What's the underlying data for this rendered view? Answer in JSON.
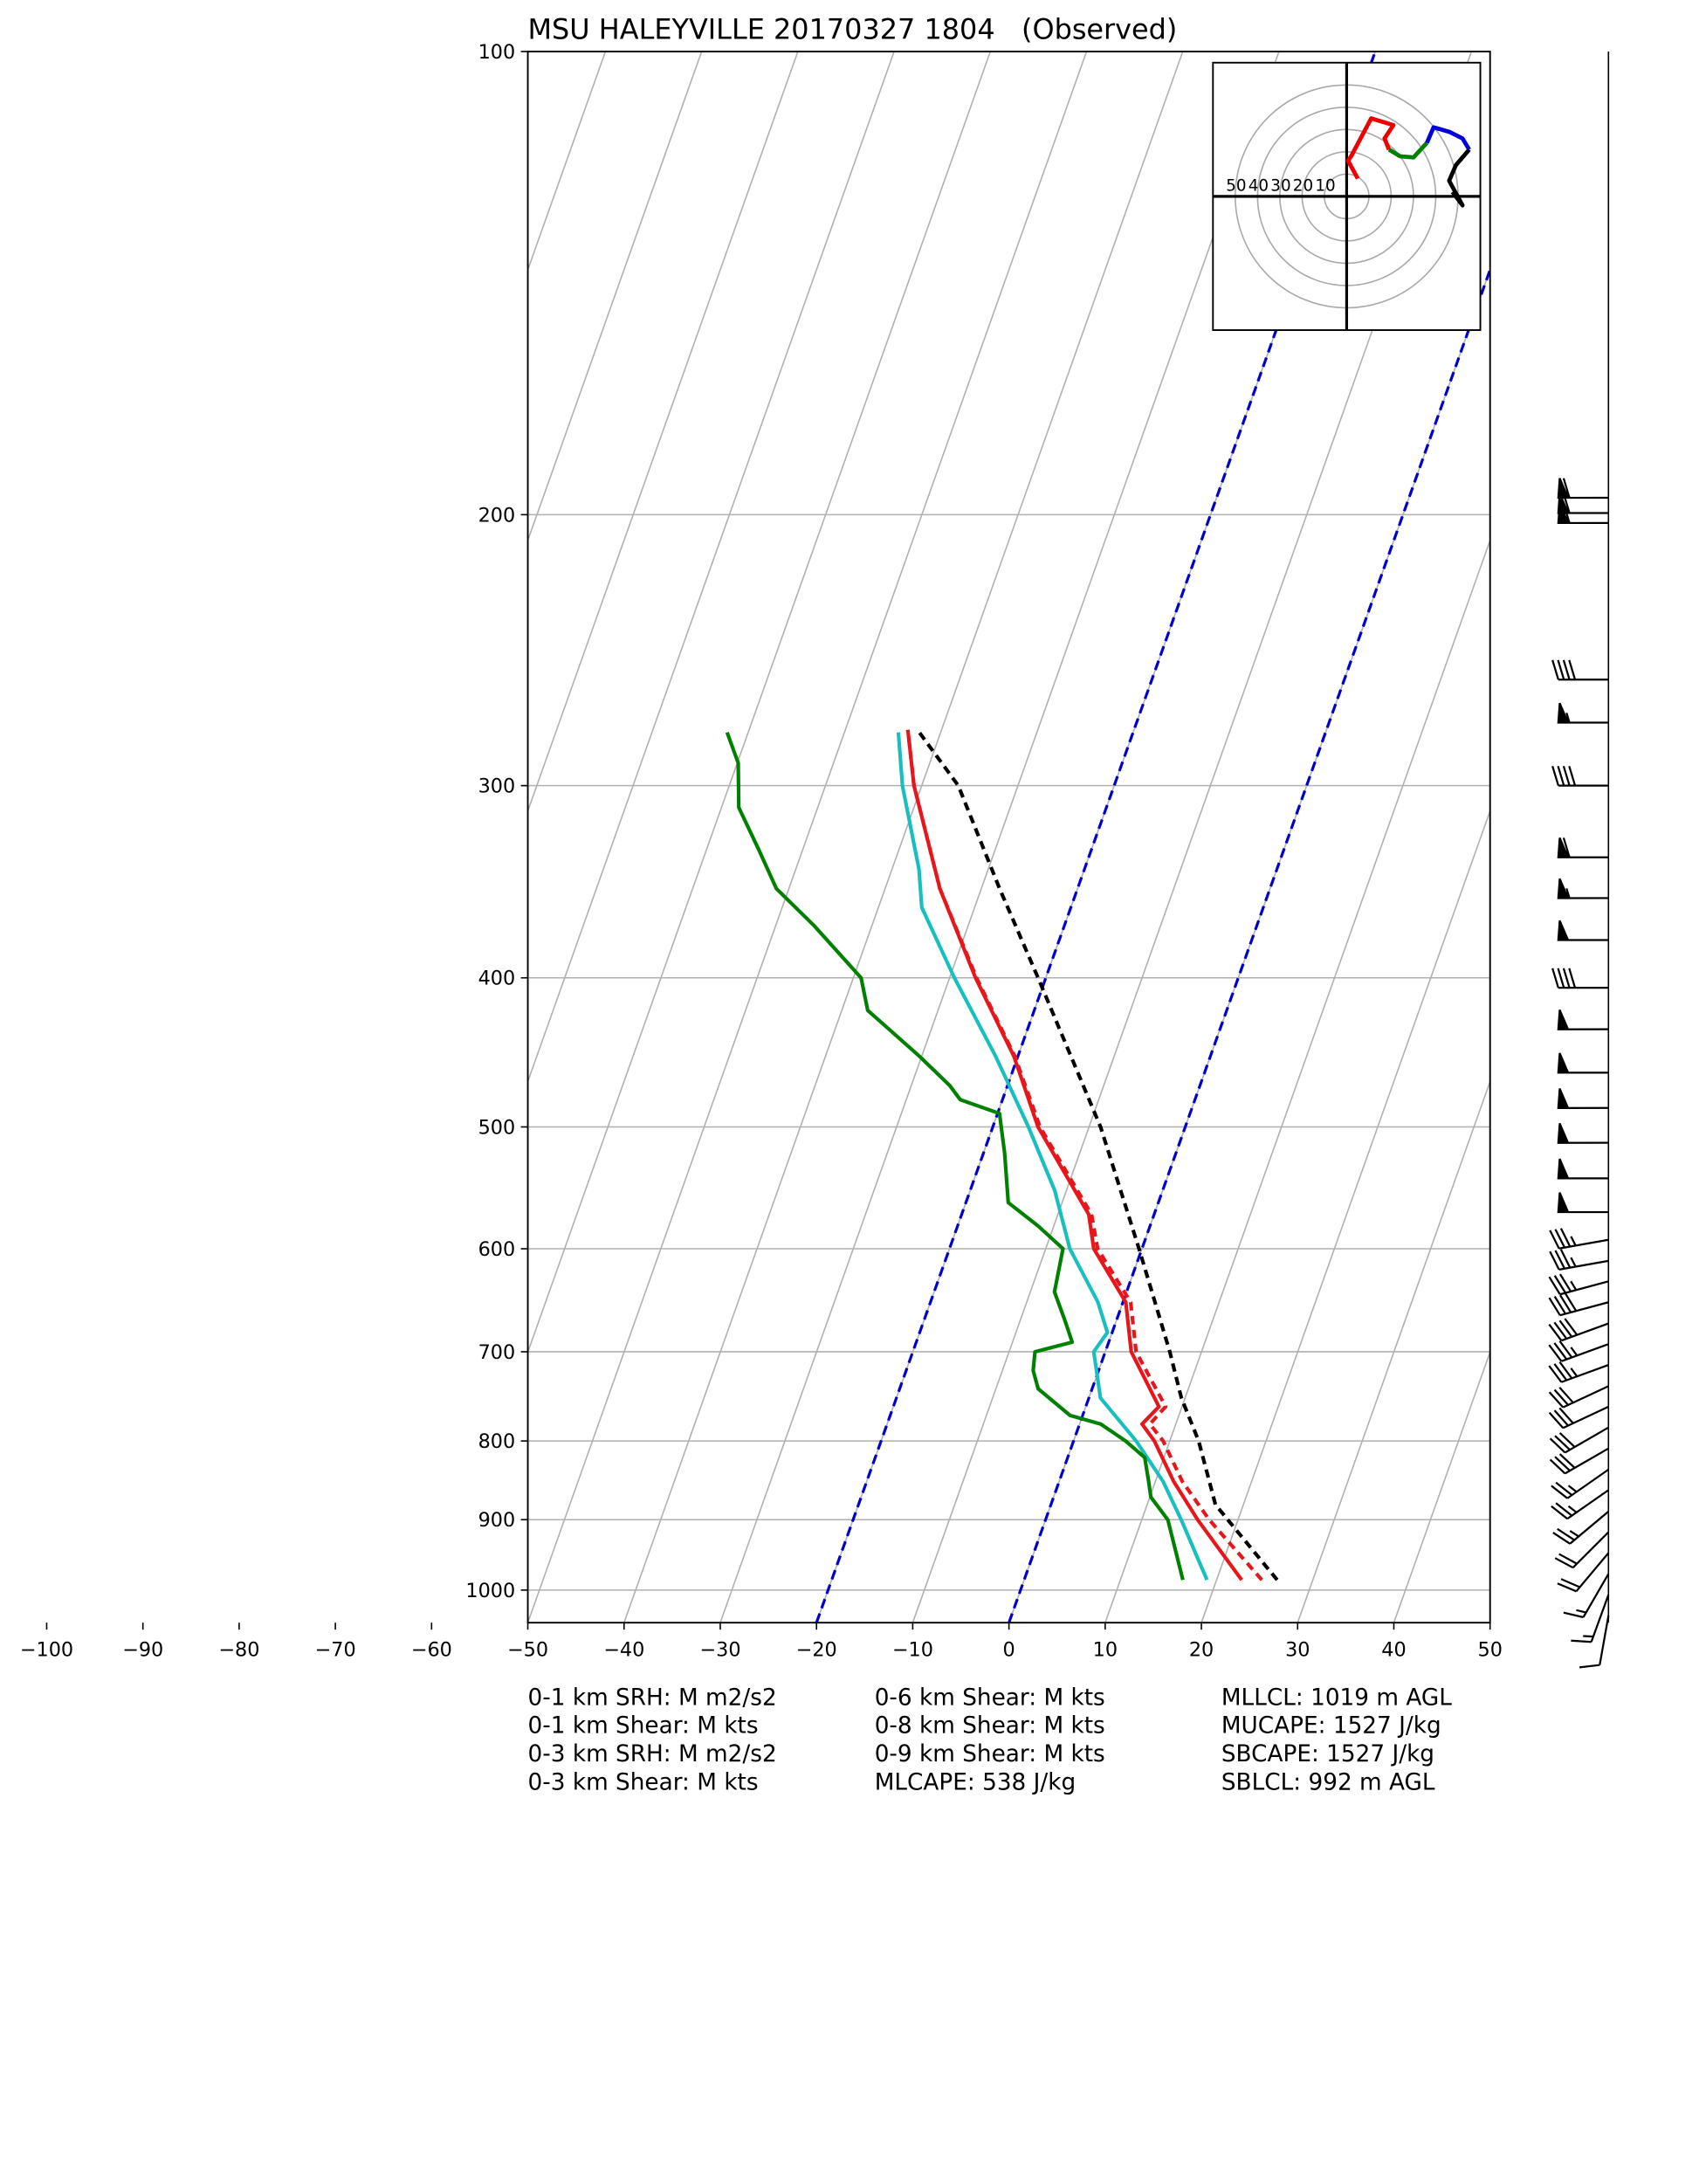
{
  "chart_data": {
    "type": "skewt",
    "title": "MSU HALEYVILLE 20170327 1804   (Observed)",
    "ylim": [
      1050,
      100
    ],
    "yticks": [
      1000,
      900,
      800,
      700,
      600,
      500,
      400,
      300,
      200,
      100
    ],
    "log_y": true,
    "xlim": [
      -50,
      50
    ],
    "xticks": [
      {
        "value": -100,
        "label": "−100"
      },
      {
        "value": -90,
        "label": "−90"
      },
      {
        "value": -80,
        "label": "−80"
      },
      {
        "value": -70,
        "label": "−70"
      },
      {
        "value": -60,
        "label": "−60"
      },
      {
        "value": -50,
        "label": "−50"
      },
      {
        "value": -40,
        "label": "−40"
      },
      {
        "value": -30,
        "label": "−30"
      },
      {
        "value": -20,
        "label": "−20"
      },
      {
        "value": -10,
        "label": "−10"
      },
      0,
      10,
      20,
      30,
      40,
      50
    ],
    "grid": true,
    "dashed_isotherms": {
      "values": [
        -20,
        0
      ],
      "color": "#0000cc"
    },
    "series": [
      {
        "color": "#17bfbf",
        "dashed": false,
        "p": [
          985,
          900,
          850,
          800,
          750,
          700,
          680,
          650,
          600,
          550,
          500,
          450,
          400,
          360,
          340,
          300,
          277
        ],
        "t": [
          19.0,
          14.1,
          10.8,
          6.5,
          1.2,
          -1.2,
          -0.5,
          -2.6,
          -7.5,
          -11.2,
          -16.3,
          -22.3,
          -29.5,
          -35.5,
          -37.2,
          -42.0,
          -44.4
        ]
      },
      {
        "color": "#008000",
        "dashed": false,
        "p": [
          985,
          900,
          870,
          850,
          820,
          800,
          780,
          770,
          740,
          720,
          700,
          690,
          670,
          640,
          600,
          580,
          560,
          520,
          490,
          480,
          470,
          450,
          420,
          400,
          370,
          350,
          330,
          310,
          290,
          277
        ],
        "t": [
          16.5,
          12.7,
          10.1,
          9.3,
          8.0,
          5.4,
          2.2,
          -1.3,
          -5.6,
          -6.8,
          -7.3,
          -3.8,
          -5.2,
          -7.5,
          -8.2,
          -11.6,
          -15.6,
          -17.8,
          -19.8,
          -24.4,
          -26.0,
          -30.2,
          -37.3,
          -39.2,
          -46.0,
          -51.3,
          -54.6,
          -58.2,
          -59.9,
          -62.2
        ]
      },
      {
        "color": "#e8161b",
        "dashed": true,
        "p": [
          985,
          900,
          850,
          800,
          780,
          760,
          700,
          650,
          600,
          570,
          500,
          450,
          400,
          350,
          300,
          276
        ],
        "t": [
          24.7,
          17.0,
          12.8,
          9.3,
          7.3,
          8.3,
          3.2,
          0.8,
          -4.6,
          -6.5,
          -15.1,
          -20.3,
          -27.2,
          -34.3,
          -40.8,
          -43.5
        ]
      },
      {
        "color": "#e8161b",
        "dashed": false,
        "p": [
          985,
          900,
          850,
          800,
          780,
          760,
          700,
          650,
          600,
          570,
          500,
          450,
          400,
          350,
          300,
          276
        ],
        "t": [
          22.6,
          15.8,
          11.9,
          8.4,
          6.5,
          7.6,
          2.7,
          0.3,
          -5.0,
          -6.8,
          -15.3,
          -20.4,
          -27.3,
          -34.3,
          -40.8,
          -43.5
        ]
      },
      {
        "color": "#000000",
        "dashed": true,
        "p": [
          985,
          880,
          850,
          800,
          750,
          700,
          600,
          500,
          400,
          350,
          300,
          276
        ],
        "t": [
          26.3,
          17.1,
          15.6,
          13.0,
          9.6,
          6.7,
          -0.3,
          -8.8,
          -20.8,
          -28.1,
          -36.2,
          -42.5
        ]
      }
    ],
    "barbs": {
      "p": [
        195,
        199.5,
        202.5,
        256,
        273,
        300,
        334,
        355,
        378,
        406,
        432,
        461,
        486,
        512,
        540,
        568,
        592,
        611,
        630,
        650,
        671,
        692,
        714,
        737,
        760,
        784,
        809,
        835,
        861,
        889,
        917,
        946,
        976,
        1007,
        1039
      ],
      "speed": [
        60,
        60,
        60,
        40,
        55,
        40,
        60,
        55,
        50,
        40,
        50,
        50,
        50,
        50,
        50,
        50,
        35,
        35,
        35,
        40,
        40,
        35,
        35,
        30,
        30,
        30,
        30,
        25,
        25,
        25,
        20,
        20,
        15,
        15,
        10
      ],
      "direction": [
        270,
        270,
        270,
        270,
        270,
        270,
        270,
        270,
        270,
        270,
        270,
        270,
        270,
        270,
        270,
        270,
        260,
        260,
        255,
        255,
        250,
        250,
        250,
        245,
        245,
        240,
        240,
        235,
        235,
        230,
        225,
        220,
        210,
        200,
        190
      ]
    },
    "hodograph": {
      "xlim": [
        -60,
        60
      ],
      "ylim": [
        -60,
        60
      ],
      "rings": [
        50,
        40,
        30,
        20,
        10
      ],
      "series": [
        {
          "color": "#ee0000",
          "u": [
            5,
            0.6,
            2,
            11,
            21,
            17,
            19
          ],
          "v": [
            8,
            16,
            18,
            35,
            32,
            26,
            21
          ]
        },
        {
          "color": "#008000",
          "u": [
            19,
            24,
            30,
            36
          ],
          "v": [
            21,
            18,
            17.5,
            24
          ]
        },
        {
          "color": "#0000dd",
          "u": [
            36,
            39,
            46,
            52,
            55
          ],
          "v": [
            24,
            31,
            29,
            26,
            21
          ]
        },
        {
          "color": "#000000",
          "u": [
            55,
            49,
            46,
            52,
            47.5
          ],
          "v": [
            21,
            14,
            7,
            -4,
            2
          ]
        }
      ]
    },
    "stats": [
      [
        "0-1 km SRH: M m2/s2",
        "0-1 km Shear: M kts",
        "0-3 km SRH: M m2/s2",
        "0-3 km Shear: M kts"
      ],
      [
        "0-6 km Shear: M kts",
        "0-8 km Shear: M kts",
        "0-9 km Shear: M kts",
        "MLCAPE: 538 J/kg"
      ],
      [
        "MLLCL: 1019 m AGL",
        "MUCAPE: 1527 J/kg",
        "SBCAPE: 1527 J/kg",
        "SBLCL: 992 m AGL"
      ]
    ]
  }
}
